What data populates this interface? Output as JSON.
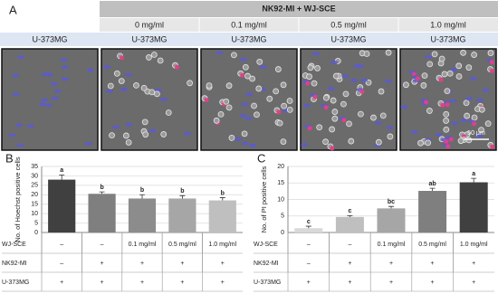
{
  "panel_a": {
    "label": "A",
    "group_header": "NK92-MI + WJ-SCE",
    "concentrations": [
      "0 mg/ml",
      "0.1 mg/ml",
      "0.5 mg/ml",
      "1.0 mg/ml"
    ],
    "cell_labels": [
      "U-373MG",
      "U-373MG",
      "U-373MG",
      "U-373MG",
      "U-373MG"
    ],
    "scale_bar": "50 μm"
  },
  "chart_data": [
    {
      "type": "bar",
      "label": "B",
      "y_label": "No. of Hoechst positive cells",
      "values": [
        28,
        20.5,
        18,
        18,
        17
      ],
      "errors": [
        2.5,
        1,
        2,
        1.5,
        1.5
      ],
      "annotations": [
        "a",
        "b",
        "b",
        "b",
        "b"
      ],
      "colors": [
        "#404040",
        "#7f7f7f",
        "#8c8c8c",
        "#a6a6a6",
        "#bfbfbf"
      ],
      "ylim": [
        0,
        35
      ],
      "yticks": [
        0,
        5,
        10,
        15,
        20,
        25,
        30,
        35
      ],
      "grid": true,
      "table": [
        {
          "label": "WJ-SCE",
          "cells": [
            "–",
            "–",
            "0.1 mg/ml",
            "0.5 mg/ml",
            "1.0 mg/ml"
          ]
        },
        {
          "label": "NK92-MI",
          "cells": [
            "–",
            "+",
            "+",
            "+",
            "+"
          ]
        },
        {
          "label": "U-373MG",
          "cells": [
            "+",
            "+",
            "+",
            "+",
            "+"
          ]
        }
      ]
    },
    {
      "type": "bar",
      "label": "C",
      "y_label": "No. of PI positive cells",
      "values": [
        1.3,
        4.7,
        7.3,
        12.6,
        15.2
      ],
      "errors": [
        0.6,
        0.4,
        0.6,
        0.8,
        1.2
      ],
      "annotations": [
        "c",
        "c",
        "bc",
        "ab",
        "a"
      ],
      "colors": [
        "#d9d9d9",
        "#bfbfbf",
        "#a6a6a6",
        "#7f7f7f",
        "#404040"
      ],
      "ylim": [
        0,
        20
      ],
      "yticks": [
        0,
        5,
        10,
        15,
        20
      ],
      "grid": true,
      "table": [
        {
          "label": "WJ-SCE",
          "cells": [
            "–",
            "–",
            "0.1 mg/ml",
            "0.5 mg/ml",
            "1.0 mg/ml"
          ]
        },
        {
          "label": "NK92-MI",
          "cells": [
            "–",
            "+",
            "+",
            "+",
            "+"
          ]
        },
        {
          "label": "U-373MG",
          "cells": [
            "+",
            "+",
            "+",
            "+",
            "+"
          ]
        }
      ]
    }
  ]
}
